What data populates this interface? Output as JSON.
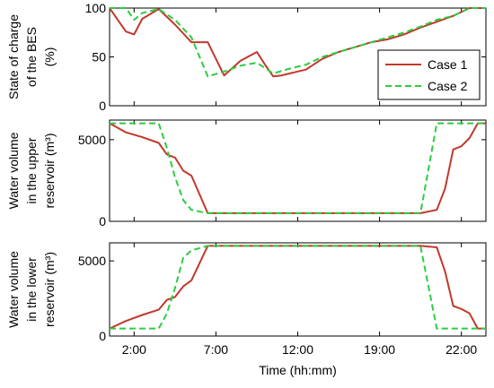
{
  "chart_data": [
    {
      "type": "line",
      "xlabel": "",
      "ylabel": [
        "State of charge",
        "of the BES",
        "(%)"
      ],
      "ylim": [
        0,
        100
      ],
      "yticks": [
        0,
        50,
        100
      ],
      "xlim": [
        0,
        23
      ],
      "legend": {
        "placement": "bottom-right",
        "entries": [
          "Case 1",
          "Case 2"
        ]
      },
      "series": [
        {
          "name": "Case 1",
          "color": "#c0392b",
          "dash": "solid",
          "x": [
            0,
            1,
            1.5,
            2,
            3,
            4,
            5,
            6,
            7,
            8,
            9,
            9.5,
            10,
            10.5,
            11,
            11.5,
            12,
            13,
            14,
            15,
            16,
            17,
            18,
            19,
            20,
            21,
            22,
            23
          ],
          "y": [
            100,
            76,
            73,
            89,
            99,
            83,
            65,
            65,
            31,
            46,
            55,
            42,
            30,
            31,
            33,
            35,
            37,
            48,
            55,
            60,
            65,
            68,
            73,
            80,
            86,
            92,
            100,
            100
          ]
        },
        {
          "name": "Case 2",
          "color": "#2ecc40",
          "dash": "dashed",
          "x": [
            0,
            1,
            1.5,
            2,
            3,
            4,
            5,
            6,
            7,
            8,
            9,
            10,
            11,
            12,
            13,
            14,
            15,
            16,
            17,
            18,
            19,
            20,
            21,
            22,
            23
          ],
          "y": [
            100,
            100,
            88,
            95,
            99,
            88,
            70,
            30,
            35,
            41,
            44,
            33,
            38,
            42,
            50,
            55,
            60,
            65,
            70,
            75,
            81,
            88,
            92,
            100,
            100
          ]
        }
      ]
    },
    {
      "type": "line",
      "xlabel": "",
      "ylabel": [
        "Water volume",
        "in the upper",
        "reservoir (m³)"
      ],
      "ylim": [
        0,
        6200
      ],
      "yticks": [
        0,
        5000
      ],
      "xlim": [
        0,
        23
      ],
      "series": [
        {
          "name": "Case 1",
          "color": "#c0392b",
          "dash": "solid",
          "x": [
            0,
            1,
            2,
            3,
            3.5,
            4,
            4.5,
            5,
            6,
            7,
            8,
            9,
            10,
            11,
            12,
            13,
            14,
            15,
            16,
            17,
            18,
            19,
            20,
            20.5,
            21,
            21.5,
            22,
            22.5,
            23
          ],
          "y": [
            6000,
            5450,
            5150,
            4800,
            4100,
            3900,
            3100,
            2800,
            500,
            500,
            500,
            500,
            500,
            500,
            500,
            500,
            500,
            500,
            500,
            500,
            500,
            500,
            700,
            2000,
            4400,
            4600,
            5100,
            6000,
            6000
          ]
        },
        {
          "name": "Case 2",
          "color": "#2ecc40",
          "dash": "dashed",
          "x": [
            0,
            1,
            2,
            3,
            3.5,
            4,
            4.5,
            5,
            6,
            7,
            8,
            9,
            10,
            11,
            12,
            13,
            14,
            15,
            16,
            17,
            18,
            19,
            20,
            20.5,
            21,
            22,
            23
          ],
          "y": [
            6000,
            6000,
            6000,
            6000,
            4500,
            2700,
            1300,
            700,
            500,
            500,
            500,
            500,
            500,
            500,
            500,
            500,
            500,
            500,
            500,
            500,
            500,
            500,
            6000,
            6000,
            6000,
            6000,
            6000
          ]
        }
      ]
    },
    {
      "type": "line",
      "xlabel": "Time (hh:mm)",
      "ylabel": [
        "Water volume",
        "in the lower",
        "reservoir (m³)"
      ],
      "ylim": [
        0,
        6200
      ],
      "yticks": [
        0,
        5000
      ],
      "xlim": [
        0,
        23
      ],
      "xticks": [
        1.5,
        6.5,
        11.5,
        16.5,
        21.5
      ],
      "xticklabels": [
        "2:00",
        "7:00",
        "12:00",
        "19:00",
        "22:00"
      ],
      "series": [
        {
          "name": "Case 1",
          "color": "#c0392b",
          "dash": "solid",
          "x": [
            0,
            1,
            2,
            3,
            3.5,
            4,
            4.5,
            5,
            6,
            7,
            8,
            9,
            10,
            11,
            12,
            13,
            14,
            15,
            16,
            17,
            18,
            19,
            20,
            20.5,
            21,
            21.5,
            22,
            22.5,
            23
          ],
          "y": [
            500,
            1000,
            1400,
            1750,
            2400,
            2600,
            3300,
            3700,
            6000,
            6000,
            6000,
            6000,
            6000,
            6000,
            6000,
            6000,
            6000,
            6000,
            6000,
            6000,
            6000,
            6000,
            5900,
            4300,
            2000,
            1800,
            1500,
            500,
            500
          ]
        },
        {
          "name": "Case 2",
          "color": "#2ecc40",
          "dash": "dashed",
          "x": [
            0,
            1,
            2,
            3,
            3.5,
            4,
            4.5,
            5,
            6,
            7,
            8,
            9,
            10,
            11,
            12,
            13,
            14,
            15,
            16,
            17,
            18,
            19,
            20,
            20.5,
            21,
            22,
            23
          ],
          "y": [
            500,
            500,
            500,
            500,
            1500,
            3200,
            5200,
            5700,
            6000,
            6000,
            6000,
            6000,
            6000,
            6000,
            6000,
            6000,
            6000,
            6000,
            6000,
            6000,
            6000,
            6000,
            500,
            500,
            500,
            500,
            500
          ]
        }
      ]
    }
  ]
}
